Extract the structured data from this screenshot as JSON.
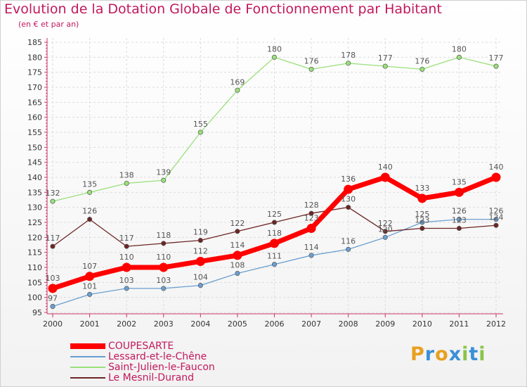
{
  "chart_data": {
    "type": "line",
    "title": "Evolution de la Dotation Globale de Fonctionnement par Habitant",
    "subtitle": "(en € et par an)",
    "xlabel": "",
    "ylabel": "",
    "ylim": [
      95,
      185
    ],
    "yticks": [
      95,
      100,
      105,
      110,
      115,
      120,
      125,
      130,
      135,
      140,
      145,
      150,
      155,
      160,
      165,
      170,
      175,
      180,
      185
    ],
    "x": [
      "2000",
      "2001",
      "2002",
      "2003",
      "2004",
      "2005",
      "2006",
      "2007",
      "2008",
      "2009",
      "2010",
      "2011",
      "2012"
    ],
    "legend_position": "bottom-left",
    "series": [
      {
        "name": "COUPESARTE",
        "color": "#ff0000",
        "values": [
          103,
          107,
          110,
          110,
          112,
          114,
          118,
          123,
          136,
          140,
          133,
          135,
          140
        ]
      },
      {
        "name": "Lessard-et-le-Chêne",
        "color": "#6a9fd0",
        "values": [
          97,
          101,
          103,
          103,
          104,
          108,
          111,
          114,
          116,
          120,
          125,
          126,
          126
        ]
      },
      {
        "name": "Saint-Julien-le-Faucon",
        "color": "#99e07a",
        "values": [
          132,
          135,
          138,
          139,
          155,
          169,
          180,
          176,
          178,
          177,
          176,
          180,
          177
        ]
      },
      {
        "name": "Le Mesnil-Durand",
        "color": "#6e2525",
        "values": [
          117,
          126,
          117,
          118,
          119,
          122,
          125,
          128,
          130,
          122,
          123,
          123,
          124
        ]
      }
    ]
  },
  "logo": {
    "text": "Proxiti",
    "letters": [
      "P",
      "r",
      "o",
      "x",
      "i",
      "t",
      "i"
    ],
    "colors": [
      "#e8a020",
      "#3a8fd8",
      "#e8a020",
      "#3a8fd8",
      "#8bc34a",
      "#3a8fd8",
      "#8bc34a"
    ]
  }
}
